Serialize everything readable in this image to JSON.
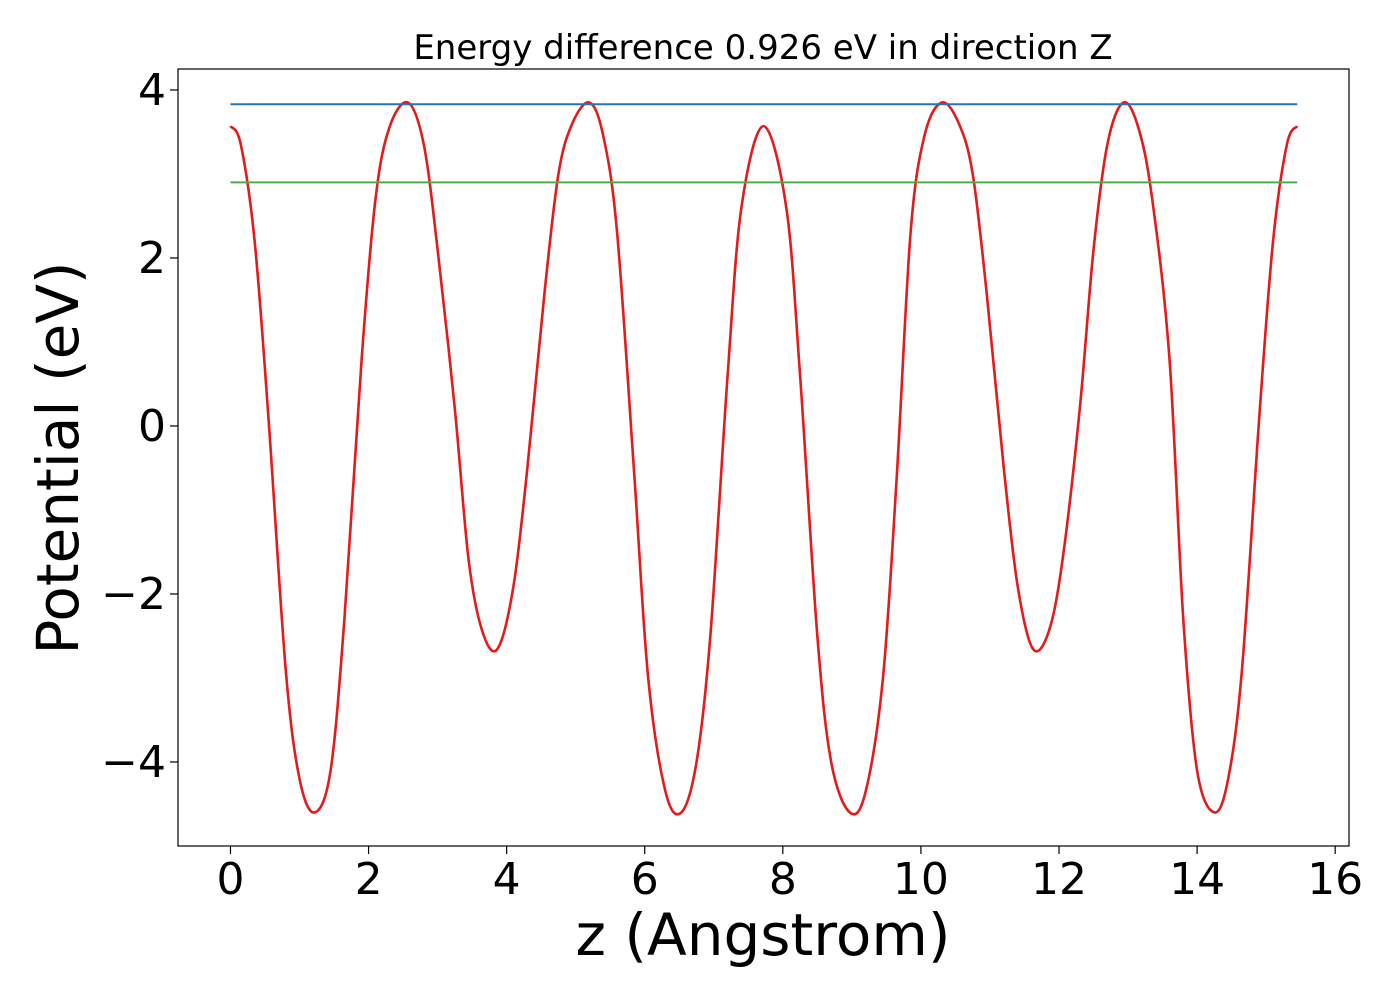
{
  "chart_data": {
    "type": "line",
    "title": "Energy difference 0.926 eV in direction Z",
    "xlabel": "z (Angstrom)",
    "ylabel": "Potential (eV)",
    "xlim": [
      -0.76,
      16.2
    ],
    "ylim": [
      -5.0,
      4.25
    ],
    "xticks": [
      0,
      2,
      4,
      6,
      8,
      10,
      12,
      14,
      16
    ],
    "xtick_labels": [
      "0",
      "2",
      "4",
      "6",
      "8",
      "10",
      "12",
      "14",
      "16"
    ],
    "yticks": [
      -4,
      -2,
      0,
      2,
      4
    ],
    "ytick_labels": [
      "−4",
      "−2",
      "0",
      "2",
      "4"
    ],
    "grid": false,
    "series": [
      {
        "color": "#e41a1c",
        "x": [
          0.0,
          0.15,
          0.35,
          0.55,
          0.8,
          1.0,
          1.22,
          1.45,
          1.65,
          1.9,
          2.1,
          2.3,
          2.57,
          2.8,
          3.0,
          3.25,
          3.45,
          3.65,
          3.87,
          4.1,
          4.3,
          4.55,
          4.75,
          4.95,
          5.2,
          5.4,
          5.6,
          5.85,
          6.05,
          6.3,
          6.53,
          6.75,
          6.95,
          7.2,
          7.4,
          7.72,
          8.05,
          8.25,
          8.5,
          8.7,
          8.97,
          9.2,
          9.45,
          9.65,
          9.85,
          10.05,
          10.3,
          10.55,
          10.75,
          10.95,
          11.2,
          11.4,
          11.62,
          11.85,
          12.05,
          12.3,
          12.5,
          12.7,
          12.93,
          13.15,
          13.35,
          13.6,
          13.8,
          14.0,
          14.25,
          14.45,
          14.65,
          14.9,
          15.1,
          15.3,
          15.45
        ],
        "y": [
          3.57,
          3.35,
          2.2,
          0.1,
          -2.9,
          -4.2,
          -4.6,
          -4.1,
          -2.3,
          0.8,
          2.7,
          3.55,
          3.85,
          3.35,
          2.1,
          0.2,
          -1.6,
          -2.45,
          -2.65,
          -1.9,
          -0.5,
          1.6,
          3.0,
          3.6,
          3.85,
          3.45,
          2.3,
          -0.6,
          -3.0,
          -4.35,
          -4.6,
          -4.0,
          -2.5,
          0.6,
          2.6,
          3.57,
          2.6,
          0.6,
          -2.5,
          -4.0,
          -4.6,
          -4.35,
          -3.0,
          -0.6,
          2.3,
          3.45,
          3.85,
          3.6,
          3.0,
          1.6,
          -0.5,
          -1.9,
          -2.65,
          -2.45,
          -1.6,
          0.2,
          2.1,
          3.35,
          3.85,
          3.55,
          2.7,
          0.8,
          -2.3,
          -4.1,
          -4.6,
          -4.2,
          -2.9,
          0.1,
          2.2,
          3.35,
          3.57
        ]
      },
      {
        "color": "#1f77b4",
        "x": [
          0.0,
          15.45
        ],
        "y": [
          3.83,
          3.83
        ]
      },
      {
        "color": "#4daf4a",
        "x": [
          0.0,
          15.45
        ],
        "y": [
          2.9,
          2.9
        ]
      }
    ]
  }
}
